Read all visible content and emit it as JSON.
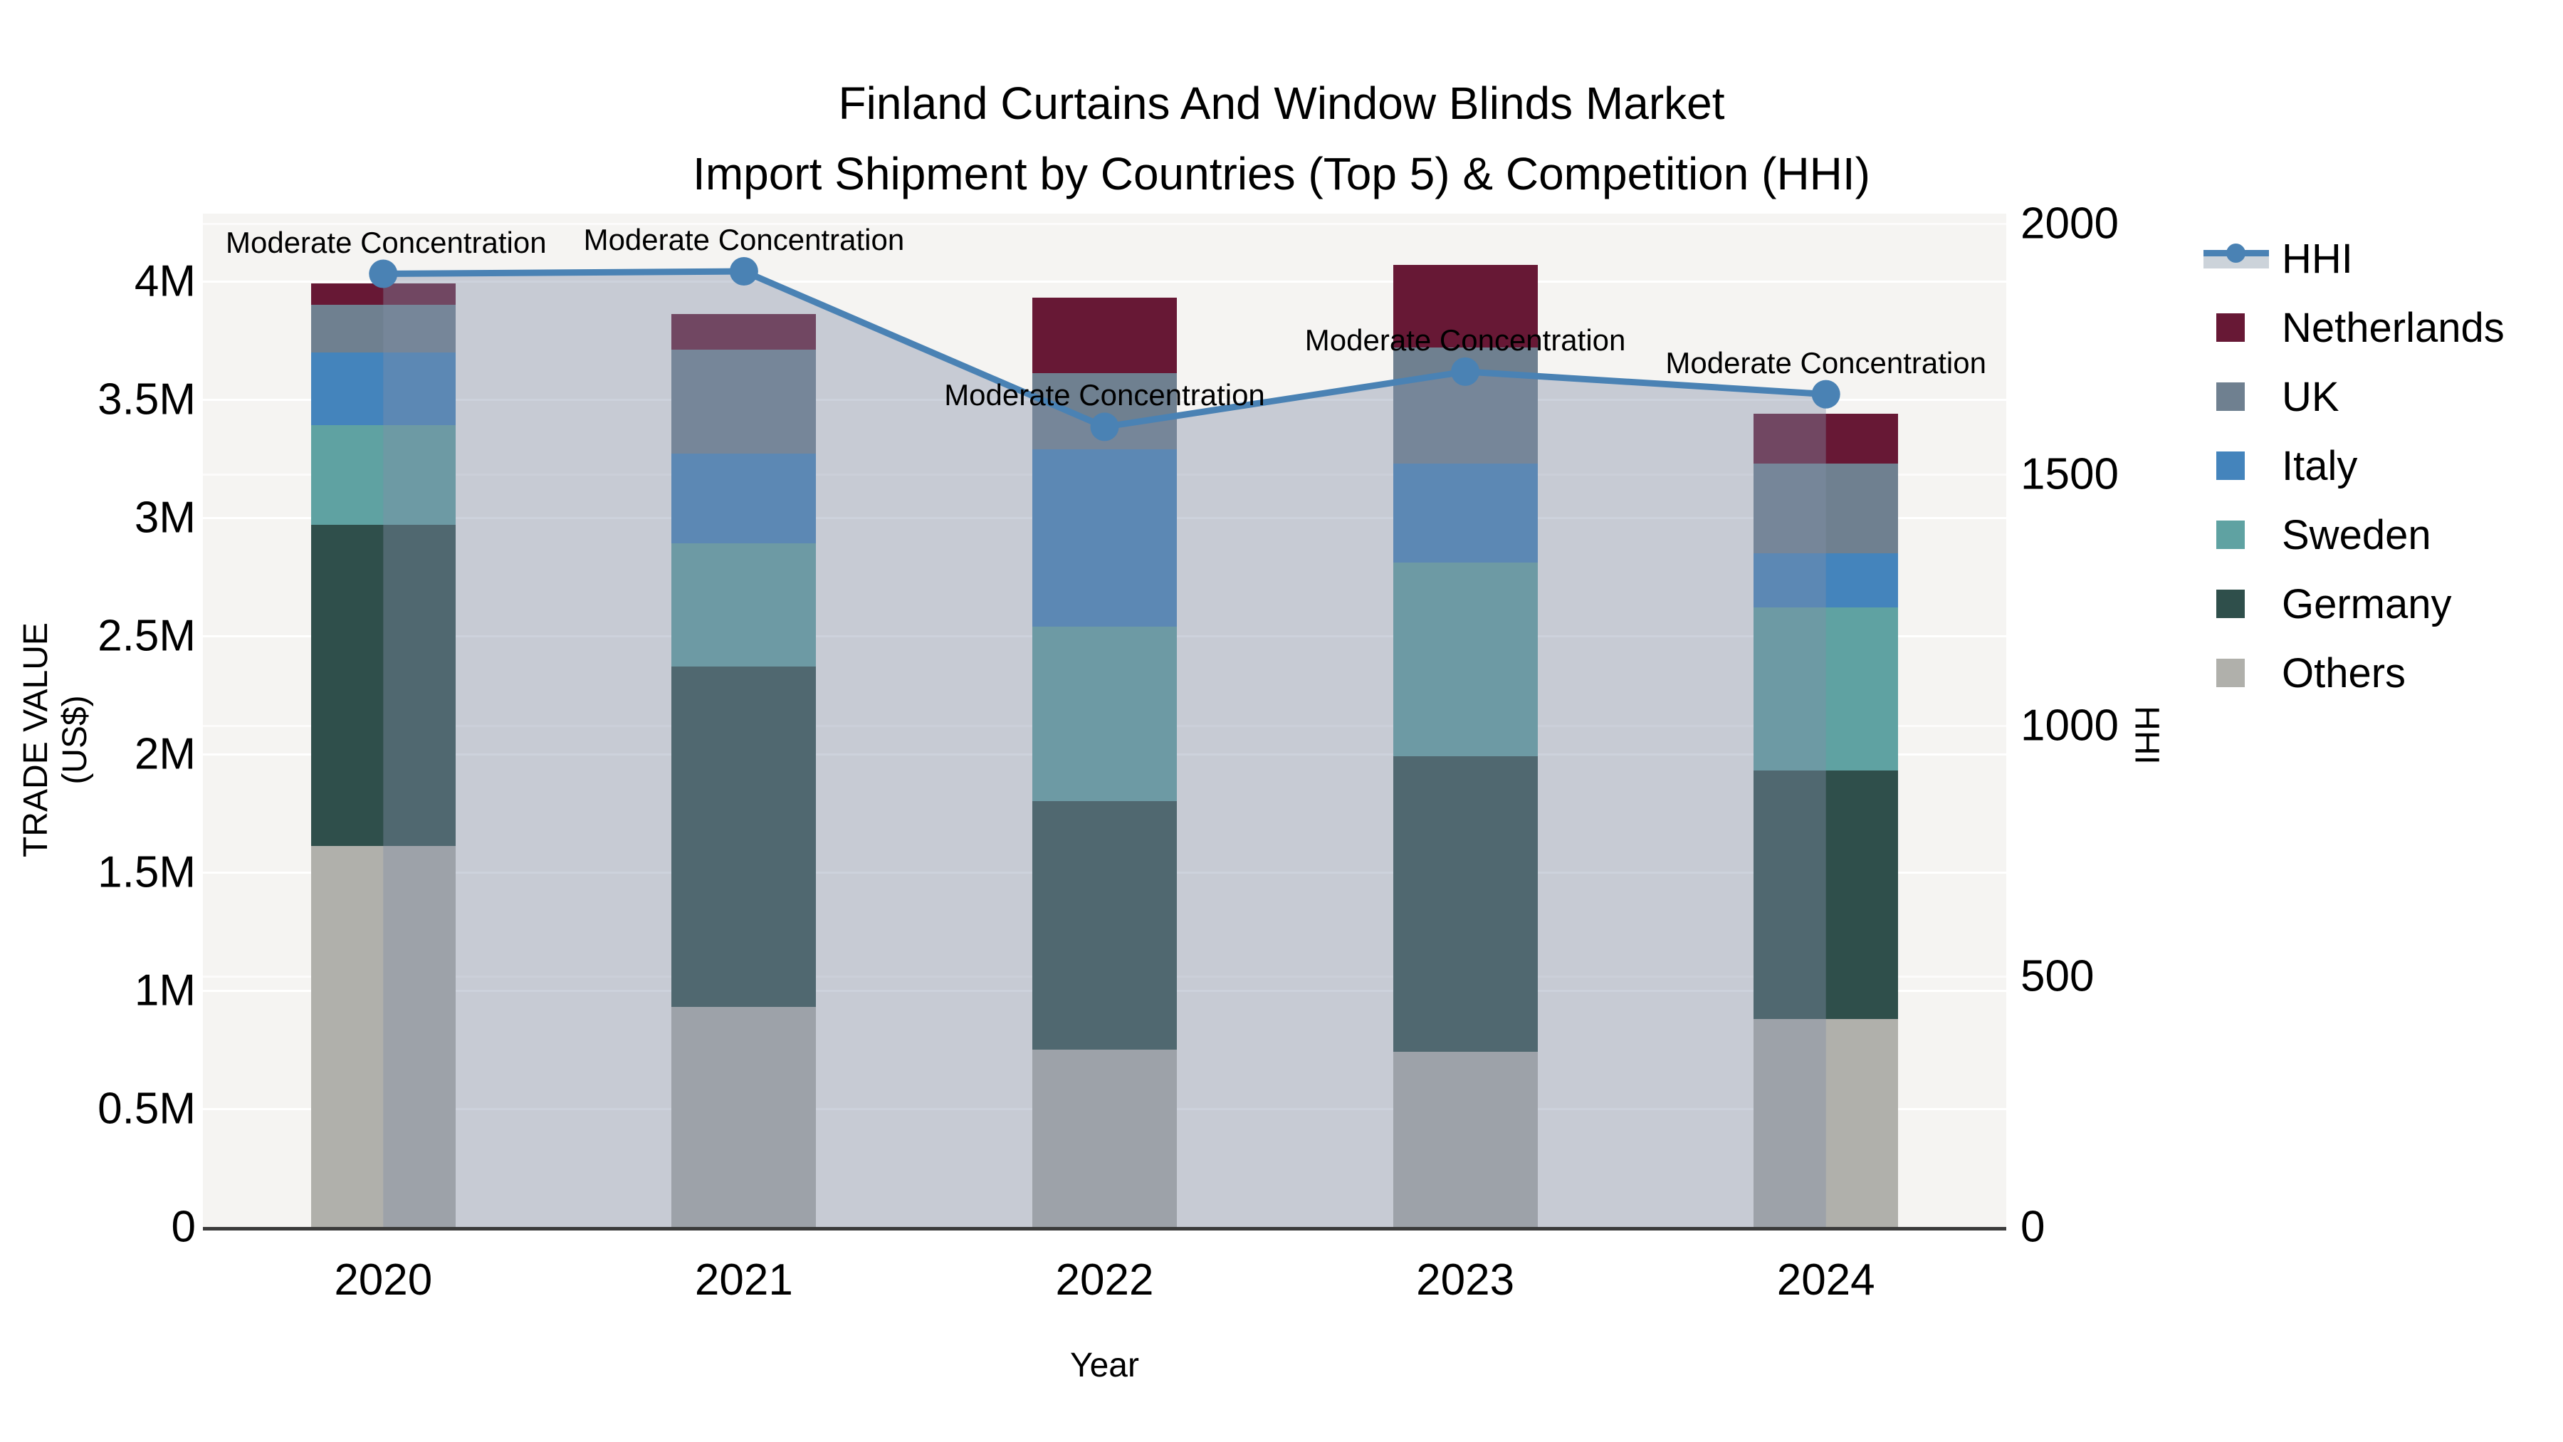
{
  "title": {
    "line1": "Finland Curtains And Window Blinds Market",
    "line2": "Import Shipment by Countries (Top 5) & Competition (HHI)"
  },
  "axes": {
    "y_left": {
      "title": "TRADE VALUE (US$)",
      "ticks": [
        {
          "label": "0",
          "value": 0
        },
        {
          "label": "0.5M",
          "value": 0.5
        },
        {
          "label": "1M",
          "value": 1
        },
        {
          "label": "1.5M",
          "value": 1.5
        },
        {
          "label": "2M",
          "value": 2
        },
        {
          "label": "2.5M",
          "value": 2.5
        },
        {
          "label": "3M",
          "value": 3
        },
        {
          "label": "3.5M",
          "value": 3.5
        },
        {
          "label": "4M",
          "value": 4
        }
      ]
    },
    "y_right": {
      "title": "HHI",
      "ticks": [
        {
          "label": "0",
          "value": 0
        },
        {
          "label": "500",
          "value": 500
        },
        {
          "label": "1000",
          "value": 1000
        },
        {
          "label": "1500",
          "value": 1500
        },
        {
          "label": "2000",
          "value": 2000
        }
      ]
    },
    "x": {
      "title": "Year",
      "categories": [
        "2020",
        "2021",
        "2022",
        "2023",
        "2024"
      ]
    }
  },
  "legend": [
    {
      "label": "HHI",
      "type": "line",
      "color": "#4a82b4"
    },
    {
      "label": "Netherlands",
      "type": "swatch",
      "color": "#671835"
    },
    {
      "label": "UK",
      "type": "swatch",
      "color": "#6f8090"
    },
    {
      "label": "Italy",
      "type": "swatch",
      "color": "#4484bc"
    },
    {
      "label": "Sweden",
      "type": "swatch",
      "color": "#5fa2a2"
    },
    {
      "label": "Germany",
      "type": "swatch",
      "color": "#2f4f4b"
    },
    {
      "label": "Others",
      "type": "swatch",
      "color": "#b0b0ab"
    }
  ],
  "colors": {
    "plot_background": "#f5f4f2",
    "axis_line": "#3b3b3b",
    "hhi_line": "#4a82b4",
    "hhi_area_fill": "rgba(130,143,168,0.40)"
  },
  "chart_data": {
    "type": "bar",
    "subtype": "stacked-bars-with-line-overlay",
    "categories": [
      "2020",
      "2021",
      "2022",
      "2023",
      "2024"
    ],
    "value_unit": "M US$ (trade value, left axis)",
    "series": [
      {
        "name": "Others",
        "color": "#b0b0ab",
        "values": [
          1.61,
          0.93,
          0.75,
          0.74,
          0.88
        ]
      },
      {
        "name": "Germany",
        "color": "#2f4f4b",
        "values": [
          1.36,
          1.44,
          1.05,
          1.25,
          1.05
        ]
      },
      {
        "name": "Sweden",
        "color": "#5fa2a2",
        "values": [
          0.42,
          0.52,
          0.74,
          0.82,
          0.69
        ]
      },
      {
        "name": "Italy",
        "color": "#4484bc",
        "values": [
          0.31,
          0.38,
          0.75,
          0.42,
          0.23
        ]
      },
      {
        "name": "UK",
        "color": "#6f8090",
        "values": [
          0.2,
          0.44,
          0.32,
          0.49,
          0.38
        ]
      },
      {
        "name": "Netherlands",
        "color": "#671835",
        "values": [
          0.09,
          0.15,
          0.32,
          0.35,
          0.21
        ]
      }
    ],
    "bar_totals": [
      3.99,
      3.86,
      3.93,
      4.07,
      3.44
    ],
    "line_series": {
      "name": "HHI",
      "axis": "right",
      "color": "#4a82b4",
      "area_fill": "rgba(130,143,168,0.40)",
      "values": [
        1900,
        1905,
        1595,
        1705,
        1660
      ]
    },
    "annotations": [
      "Moderate Concentration",
      "Moderate Concentration",
      "Moderate Concentration",
      "Moderate Concentration",
      "Moderate Concentration"
    ],
    "title": "Finland Curtains And Window Blinds Market — Import Shipment by Countries (Top 5) & Competition (HHI)",
    "xlabel": "Year",
    "ylabel_left": "TRADE VALUE (US$)",
    "ylabel_right": "HHI",
    "ylim_left": [
      0,
      4.286
    ],
    "ylim_right": [
      0,
      2020
    ],
    "grid": true,
    "legend_position": "right"
  }
}
